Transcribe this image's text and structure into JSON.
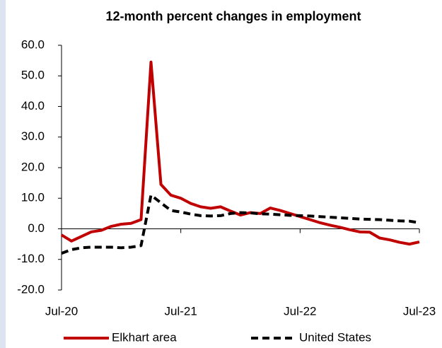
{
  "chart_data": {
    "type": "line",
    "title": "12-month percent changes in employment",
    "categories": [
      "Jul-20",
      null,
      null,
      null,
      null,
      null,
      null,
      null,
      null,
      null,
      null,
      null,
      "Jul-21",
      null,
      null,
      null,
      null,
      null,
      null,
      null,
      null,
      null,
      null,
      null,
      "Jul-22",
      null,
      null,
      null,
      null,
      null,
      null,
      null,
      null,
      null,
      null,
      null,
      "Jul-23"
    ],
    "series": [
      {
        "name": "Elkhart area",
        "color": "#c00000",
        "dash": "solid",
        "values": [
          -2,
          -4,
          -2.5,
          -1,
          -0.5,
          0.8,
          1.5,
          1.8,
          3,
          54.5,
          14.5,
          11,
          10,
          8.3,
          7.2,
          6.7,
          7.2,
          5.8,
          4.5,
          5.3,
          5.0,
          6.8,
          6.0,
          5.0,
          4.0,
          3.0,
          2.0,
          1.2,
          0.5,
          -0.3,
          -1.0,
          -1.1,
          -3.0,
          -3.6,
          -4.4,
          -5.0,
          -4.3
        ]
      },
      {
        "name": "United States",
        "color": "#000000",
        "dash": "dashed",
        "values": [
          -8,
          -6.8,
          -6.2,
          -6,
          -6,
          -6,
          -6.2,
          -6,
          -5.5,
          11,
          8.5,
          6,
          5.5,
          4.8,
          4.3,
          4.2,
          4.3,
          5,
          5.3,
          5.2,
          4.9,
          4.8,
          4.6,
          4.4,
          4.3,
          4.2,
          4.0,
          3.8,
          3.6,
          3.4,
          3.2,
          3.1,
          3.0,
          2.8,
          2.6,
          2.5,
          2.0
        ]
      }
    ],
    "ylim": [
      -20,
      60
    ],
    "yticks": [
      {
        "value": -20,
        "label": "-20.0"
      },
      {
        "value": -10,
        "label": "-10.0"
      },
      {
        "value": 0,
        "label": "0.0"
      },
      {
        "value": 10,
        "label": "10.0"
      },
      {
        "value": 20,
        "label": "20.0"
      },
      {
        "value": 30,
        "label": "30.0"
      },
      {
        "value": 40,
        "label": "40.0"
      },
      {
        "value": 50,
        "label": "50.0"
      },
      {
        "value": 60,
        "label": "60.0"
      }
    ],
    "legend": "bottom",
    "grid": false
  }
}
